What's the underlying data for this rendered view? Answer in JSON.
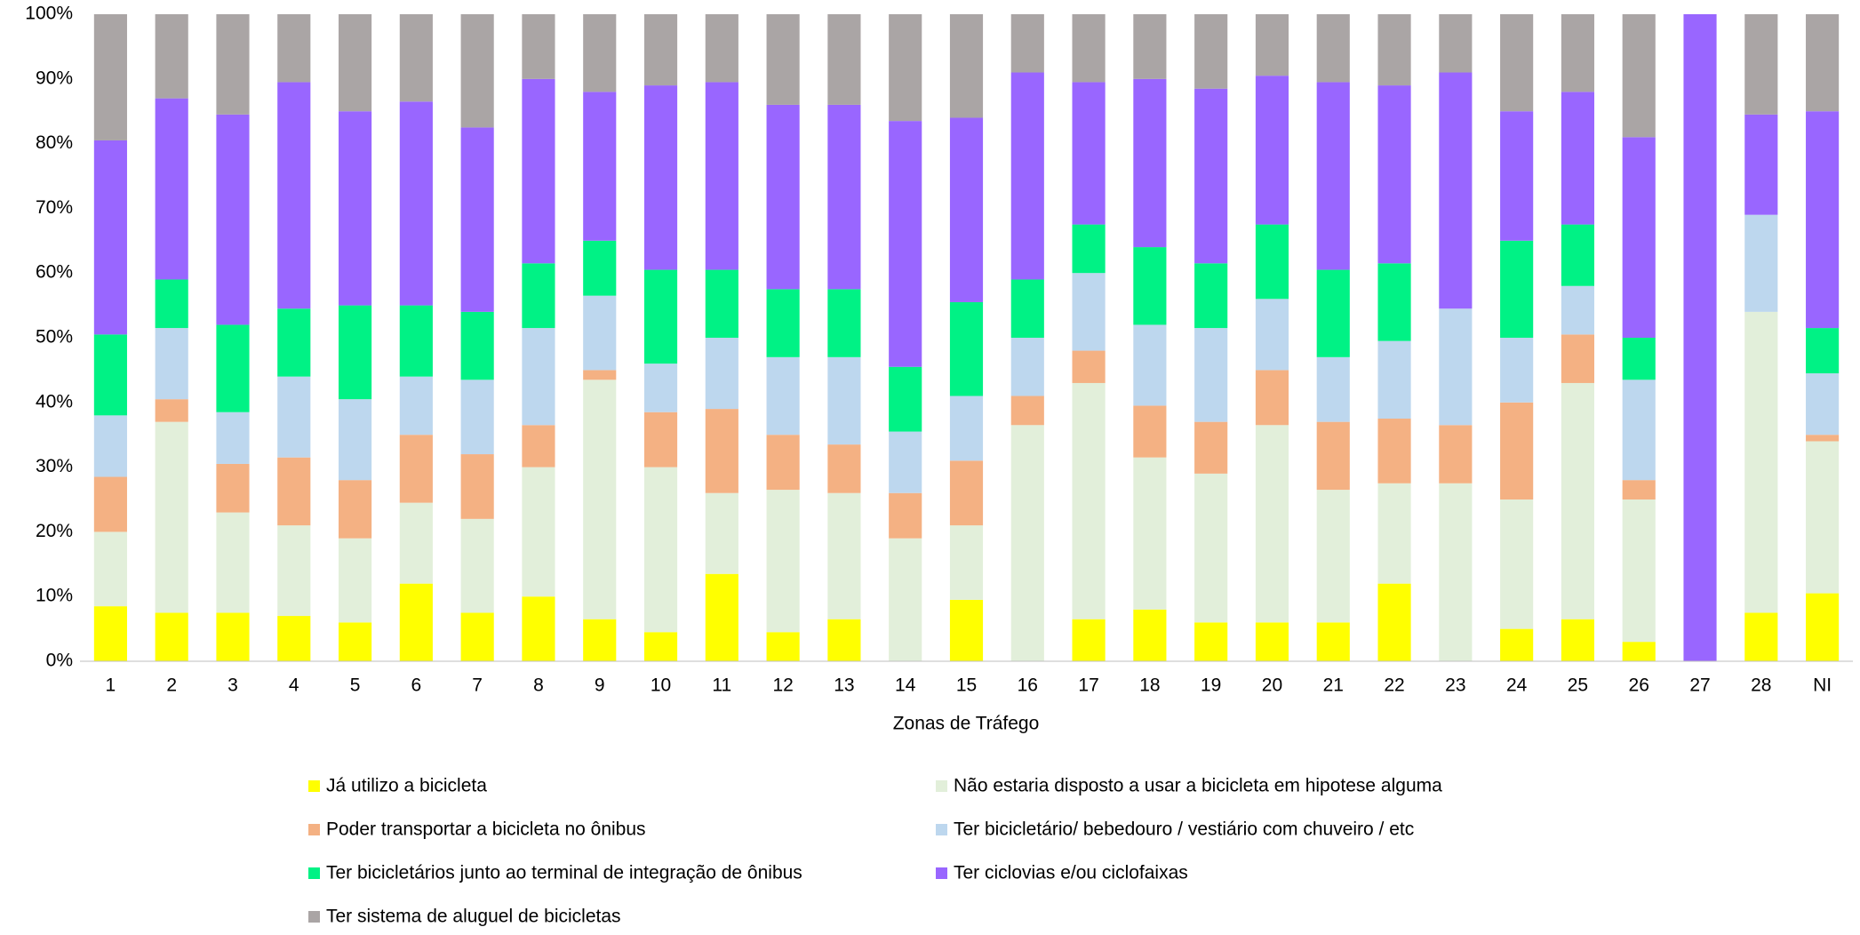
{
  "chart_data": {
    "type": "stacked_bar",
    "xlabel": "Zonas de Tráfego",
    "categories": [
      "1",
      "2",
      "3",
      "4",
      "5",
      "6",
      "7",
      "8",
      "9",
      "10",
      "11",
      "12",
      "13",
      "14",
      "15",
      "16",
      "17",
      "18",
      "19",
      "20",
      "21",
      "22",
      "23",
      "24",
      "25",
      "26",
      "27",
      "28",
      "NI"
    ],
    "ylim": [
      0,
      100
    ],
    "yticks": [
      {
        "value": 0,
        "label": "0%"
      },
      {
        "value": 10,
        "label": "10%"
      },
      {
        "value": 20,
        "label": "20%"
      },
      {
        "value": 30,
        "label": "30%"
      },
      {
        "value": 40,
        "label": "40%"
      },
      {
        "value": 50,
        "label": "50%"
      },
      {
        "value": 60,
        "label": "60%"
      },
      {
        "value": 70,
        "label": "70%"
      },
      {
        "value": 80,
        "label": "80%"
      },
      {
        "value": 90,
        "label": "90%"
      },
      {
        "value": 100,
        "label": "100%"
      }
    ],
    "grid": false,
    "legend": "bottom",
    "series": [
      {
        "name": "Já utilizo a bicicleta",
        "color": "#ffff00",
        "values": [
          8.5,
          7.5,
          7.5,
          7,
          6,
          12,
          7.5,
          10,
          6.5,
          4.5,
          13.5,
          4.5,
          6.5,
          0,
          9.5,
          0,
          6.5,
          8,
          6,
          6,
          6,
          12,
          0,
          5,
          6.5,
          3,
          0,
          7.5,
          10.5
        ]
      },
      {
        "name": "Não estaria disposto a usar a bicicleta em hipotese alguma",
        "color": "#e2efda",
        "values": [
          11.5,
          29.5,
          15.5,
          14,
          13,
          12.5,
          14.5,
          20,
          37,
          25.5,
          12.5,
          22,
          19.5,
          19,
          11.5,
          36.5,
          36.5,
          23.5,
          23,
          30.5,
          20.5,
          15.5,
          27.5,
          20,
          36.5,
          22,
          0,
          46.5,
          23.5
        ]
      },
      {
        "name": "Poder transportar a bicicleta no ônibus",
        "color": "#f4b183",
        "values": [
          8.5,
          3.5,
          7.5,
          10.5,
          9,
          10.5,
          10,
          6.5,
          1.5,
          8.5,
          13,
          8.5,
          7.5,
          7,
          10,
          4.5,
          5,
          8,
          8,
          8.5,
          10.5,
          10,
          9,
          15,
          7.5,
          3,
          0,
          0,
          1
        ]
      },
      {
        "name": "Ter bicicletário/ bebedouro / vestiário com chuveiro / etc",
        "color": "#bdd7ee",
        "values": [
          9.5,
          11,
          8,
          12.5,
          12.5,
          9,
          11.5,
          15,
          11.5,
          7.5,
          11,
          12,
          13.5,
          9.5,
          10,
          9,
          12,
          12.5,
          14.5,
          11,
          10,
          12,
          18,
          10,
          7.5,
          15.5,
          0,
          15,
          9.5
        ]
      },
      {
        "name": "Ter bicicletários junto ao terminal de integração de ônibus",
        "color": "#00f285",
        "values": [
          12.5,
          7.5,
          13.5,
          10.5,
          14.5,
          11,
          10.5,
          10,
          8.5,
          14.5,
          10.5,
          10.5,
          10.5,
          10,
          14.5,
          9,
          7.5,
          12,
          10,
          11.5,
          13.5,
          12,
          0,
          15,
          9.5,
          6.5,
          0,
          0,
          7
        ]
      },
      {
        "name": "Ter ciclovias e/ou ciclofaixas",
        "color": "#9966ff",
        "values": [
          30,
          28,
          32.5,
          35,
          30,
          31.5,
          28.5,
          28.5,
          23,
          28.5,
          29,
          28.5,
          28.5,
          38,
          28.5,
          32,
          22,
          26,
          27,
          23,
          29,
          27.5,
          36.5,
          20,
          20.5,
          31,
          100,
          15.5,
          33.5
        ]
      },
      {
        "name": "Ter sistema de aluguel de bicicletas",
        "color": "#aaa5a5",
        "values": [
          19.5,
          13,
          15.5,
          10.5,
          15,
          13.5,
          17.5,
          10,
          12,
          11,
          10.5,
          14,
          14,
          16.5,
          16,
          9,
          10.5,
          10,
          11.5,
          9.5,
          10.5,
          11,
          9,
          15,
          12,
          19,
          0,
          15.5,
          15
        ]
      }
    ]
  }
}
